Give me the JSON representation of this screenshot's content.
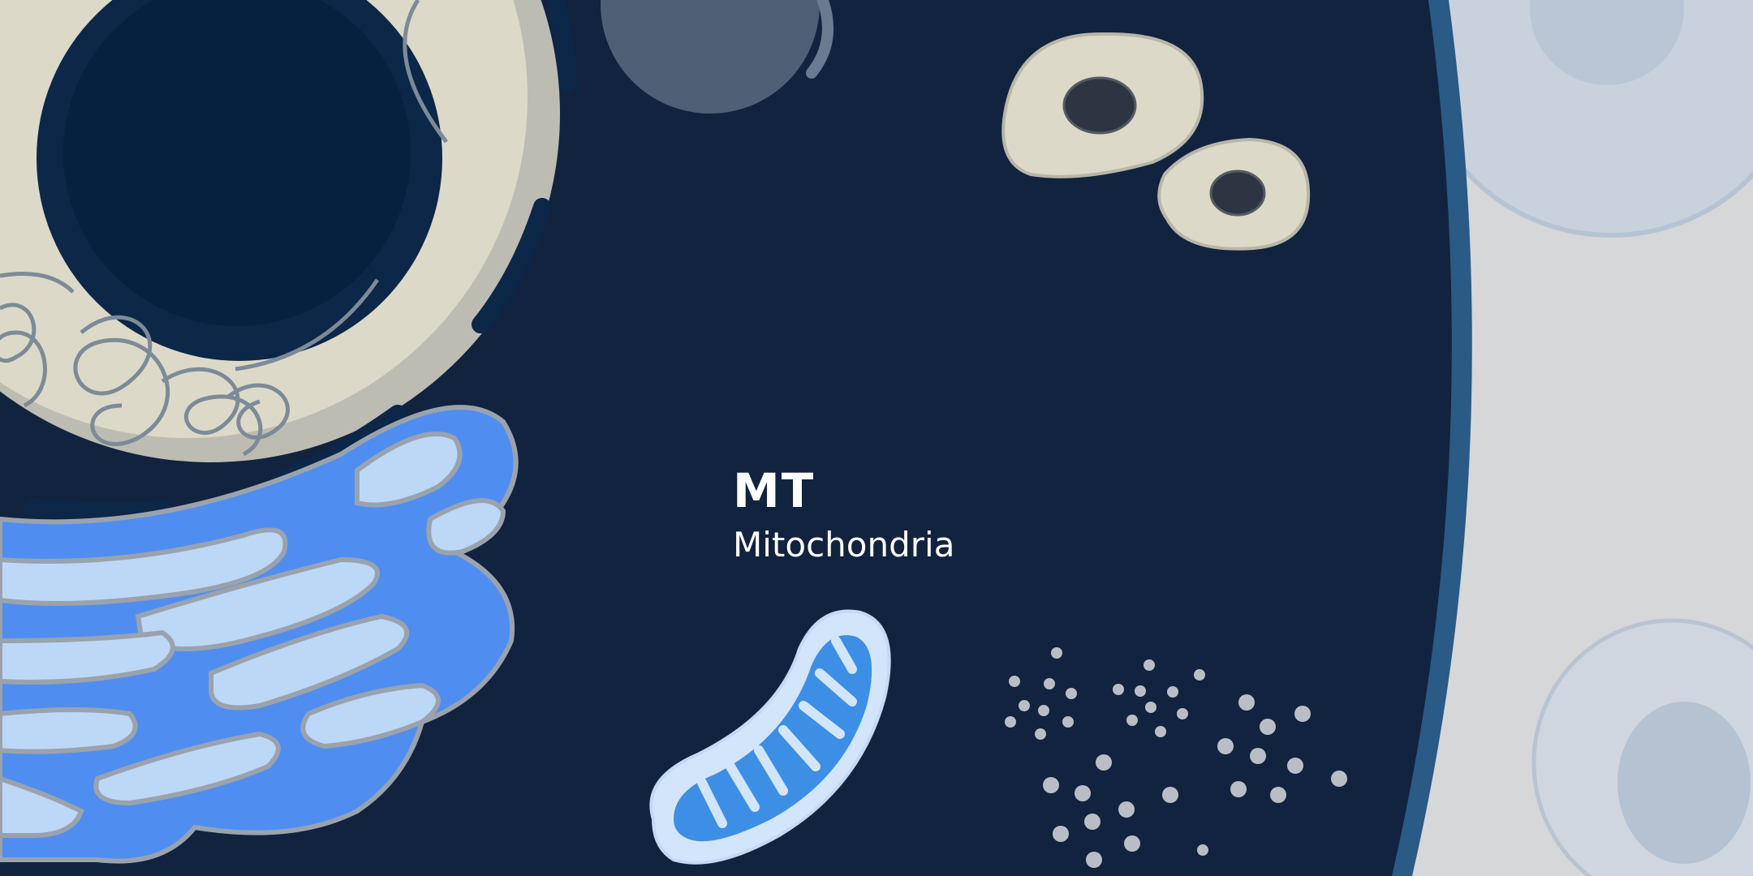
{
  "organelle": {
    "abbreviation": "MT",
    "name": "Mitochondria"
  },
  "scene_objects": [
    "nucleus",
    "golgi-apparatus",
    "mitochondrion",
    "vesicles",
    "ribosome-dots",
    "cell-membrane",
    "neighbor-cells"
  ],
  "colors": {
    "cytoplasm": "#12233f",
    "membrane": "#2a5a86",
    "nucleus_envelope": "#dcd9c9",
    "nucleolus": "#06203f",
    "golgi": "#4f8ef0",
    "golgi_light": "#bdd7f6",
    "mitochondria": "#3d8fe6",
    "ribosome": "#b9bec6",
    "vesicle": "#dcd9c9",
    "text": "#ffffff"
  }
}
